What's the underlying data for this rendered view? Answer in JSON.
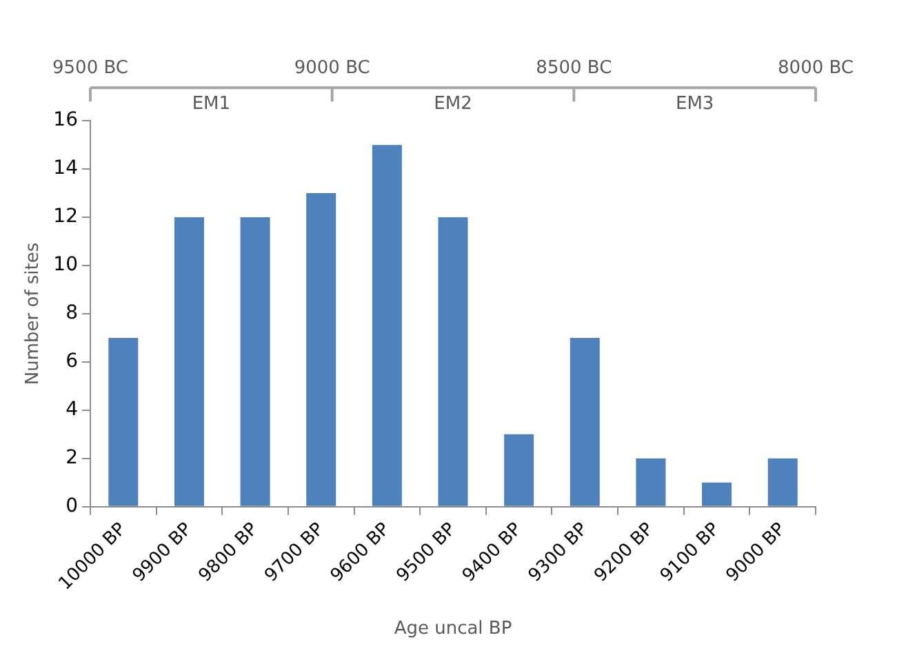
{
  "chart_data": {
    "type": "bar",
    "xlabel": "Age uncal BP",
    "ylabel": "Number of sites",
    "categories": [
      "10000 BP",
      "9900 BP",
      "9800 BP",
      "9700 BP",
      "9600 BP",
      "9500 BP",
      "9400 BP",
      "9300 BP",
      "9200 BP",
      "9100 BP",
      "9000 BP"
    ],
    "values": [
      7,
      12,
      12,
      13,
      15,
      12,
      3,
      7,
      2,
      1,
      2
    ],
    "color": "#4f81bd",
    "ylim": [
      0,
      16
    ],
    "yticks": [
      0,
      2,
      4,
      6,
      8,
      10,
      12,
      14,
      16
    ],
    "x2lim": [
      9500,
      8000
    ],
    "x2ticks": [
      {
        "value": 9500,
        "label": "9500 BC"
      },
      {
        "value": 9000,
        "label": "9000 BC"
      },
      {
        "value": 8500,
        "label": "8500 BC"
      },
      {
        "value": 8000,
        "label": "8000 BC"
      }
    ],
    "annotations": [
      "EM1",
      "EM2",
      "EM3"
    ],
    "grid": false,
    "legend": false
  }
}
